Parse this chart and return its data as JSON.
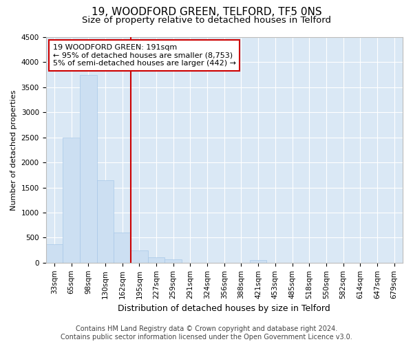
{
  "title1": "19, WOODFORD GREEN, TELFORD, TF5 0NS",
  "title2": "Size of property relative to detached houses in Telford",
  "xlabel": "Distribution of detached houses by size in Telford",
  "ylabel": "Number of detached properties",
  "categories": [
    "33sqm",
    "65sqm",
    "98sqm",
    "130sqm",
    "162sqm",
    "195sqm",
    "227sqm",
    "259sqm",
    "291sqm",
    "324sqm",
    "356sqm",
    "388sqm",
    "421sqm",
    "453sqm",
    "485sqm",
    "518sqm",
    "550sqm",
    "582sqm",
    "614sqm",
    "647sqm",
    "679sqm"
  ],
  "values": [
    375,
    2500,
    3750,
    1650,
    600,
    250,
    110,
    60,
    0,
    0,
    0,
    0,
    50,
    0,
    0,
    0,
    0,
    0,
    0,
    0,
    0
  ],
  "bar_color": "#ccdff2",
  "bar_edge_color": "#a8c8e8",
  "vline_x": 5.0,
  "vline_color": "#cc0000",
  "annotation_text": "19 WOODFORD GREEN: 191sqm\n← 95% of detached houses are smaller (8,753)\n5% of semi-detached houses are larger (442) →",
  "annotation_box_color": "#ffffff",
  "annotation_box_edgecolor": "#cc0000",
  "ylim": [
    0,
    4500
  ],
  "yticks": [
    0,
    500,
    1000,
    1500,
    2000,
    2500,
    3000,
    3500,
    4000,
    4500
  ],
  "footer1": "Contains HM Land Registry data © Crown copyright and database right 2024.",
  "footer2": "Contains public sector information licensed under the Open Government Licence v3.0.",
  "plot_bg_color": "#dae8f5",
  "title1_fontsize": 11,
  "title2_fontsize": 9.5,
  "xlabel_fontsize": 9,
  "ylabel_fontsize": 8,
  "tick_fontsize": 7.5,
  "footer_fontsize": 7,
  "annotation_fontsize": 8
}
